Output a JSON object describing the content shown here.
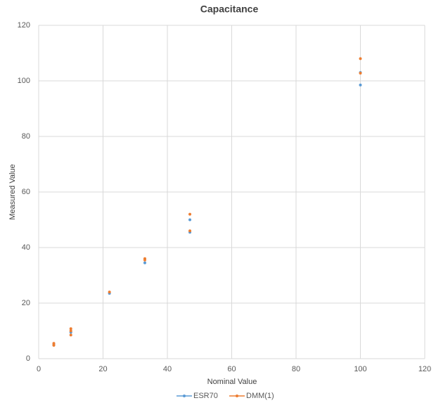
{
  "chart_data": {
    "type": "scatter",
    "title": "Capacitance",
    "x_label": "Nominal Value",
    "y_label": "Measured Value",
    "xlim": [
      0,
      120
    ],
    "ylim": [
      0,
      120
    ],
    "xticks": [
      0,
      20,
      40,
      60,
      80,
      100,
      120
    ],
    "yticks": [
      0,
      20,
      40,
      60,
      80,
      100,
      120
    ],
    "grid": true,
    "legend": "bottom",
    "series": [
      {
        "name": "ESR70",
        "color": "#5b9bd5",
        "x": [
          4.7,
          10,
          22,
          33,
          47,
          47,
          100,
          100
        ],
        "values": [
          5.0,
          9.5,
          23.5,
          34.5,
          50,
          45.5,
          98.5,
          103
        ]
      },
      {
        "name": "DMM(1)",
        "color": "#ed7d31",
        "x": [
          4.7,
          4.7,
          10,
          10,
          10,
          22,
          33,
          33,
          47,
          47,
          100,
          100
        ],
        "values": [
          5.5,
          4.8,
          10.8,
          10,
          8.5,
          24,
          36,
          35.5,
          52,
          46,
          108,
          102.8
        ]
      }
    ]
  }
}
